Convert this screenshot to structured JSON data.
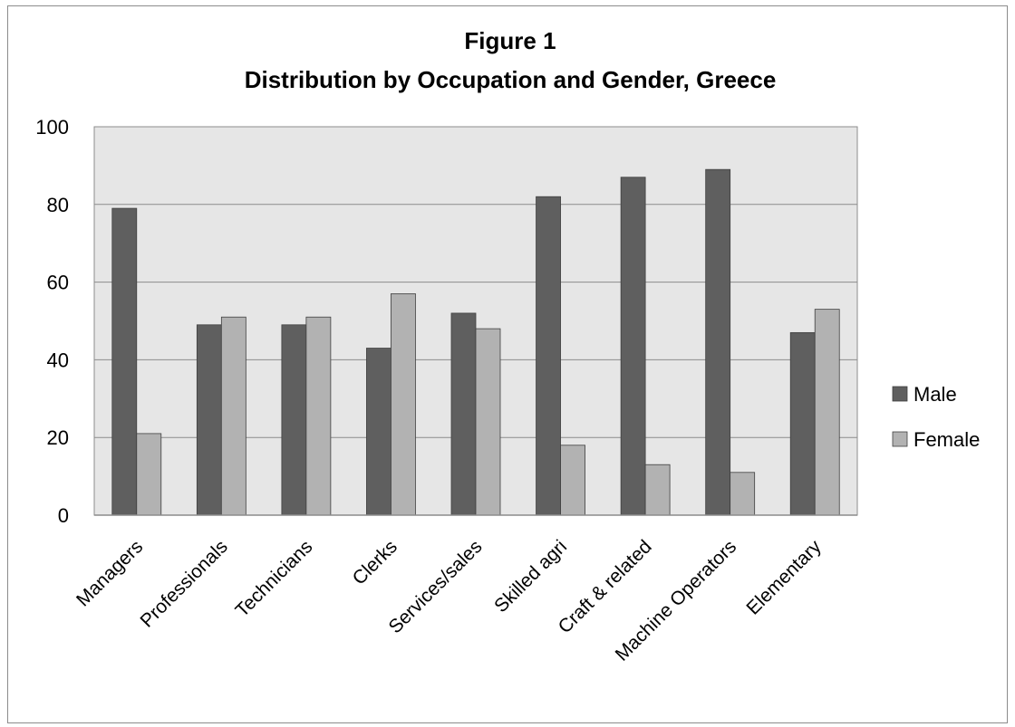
{
  "chart_data": {
    "type": "bar",
    "title": "Figure 1",
    "subtitle": "Distribution by Occupation and Gender, Greece",
    "xlabel": "",
    "ylabel": "",
    "ylim": [
      0,
      100
    ],
    "yticks": [
      0,
      20,
      40,
      60,
      80,
      100
    ],
    "grid": true,
    "legend_position": "right",
    "categories": [
      "Managers",
      "Professionals",
      "Technicians",
      "Clerks",
      "Services/sales",
      "Skilled agri",
      "Craft & related",
      "Machine Operators",
      "Elementary"
    ],
    "series": [
      {
        "name": "Male",
        "color": "#5f5f5f",
        "values": [
          79,
          49,
          49,
          43,
          52,
          82,
          87,
          89,
          47
        ]
      },
      {
        "name": "Female",
        "color": "#b2b2b2",
        "values": [
          21,
          51,
          51,
          57,
          48,
          18,
          13,
          11,
          53
        ]
      }
    ],
    "plot_background": "#e6e6e6",
    "grid_color": "#8c8c8c"
  }
}
